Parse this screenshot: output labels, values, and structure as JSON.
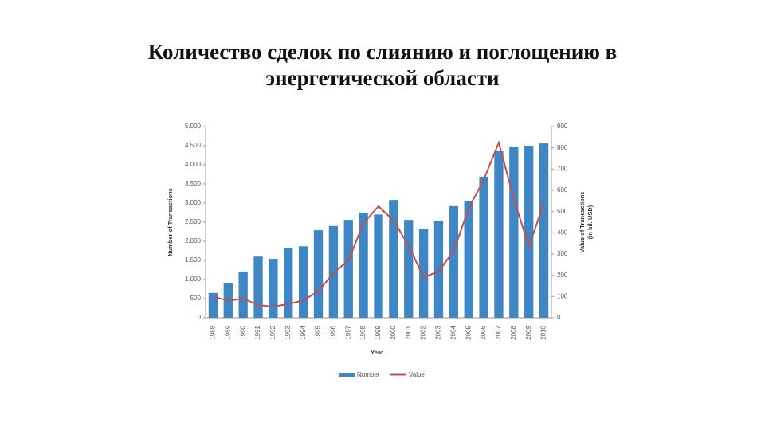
{
  "title_lines": [
    "Количество сделок по слиянию и поглощению в",
    "энергетической области"
  ],
  "chart_data": {
    "type": "bar_line",
    "categories": [
      "1988",
      "1989",
      "1990",
      "1991",
      "1992",
      "1993",
      "1994",
      "1995",
      "1996",
      "1997",
      "1998",
      "1999",
      "2000",
      "2001",
      "2002",
      "2003",
      "2004",
      "2005",
      "2006",
      "2007",
      "2008",
      "2009",
      "2010"
    ],
    "series": [
      {
        "name": "Number",
        "type": "bar",
        "color": "#3f86c4",
        "values": [
          650,
          900,
          1210,
          1600,
          1540,
          1830,
          1870,
          2290,
          2400,
          2560,
          2750,
          2700,
          3080,
          2560,
          2330,
          2540,
          2920,
          3060,
          3690,
          4375,
          4480,
          4500,
          4560
        ]
      },
      {
        "name": "Value",
        "type": "line",
        "axis": "y2",
        "color": "#c0504d",
        "values": [
          100,
          80,
          90,
          60,
          52,
          65,
          82,
          125,
          210,
          270,
          445,
          525,
          458,
          340,
          190,
          218,
          315,
          515,
          650,
          825,
          560,
          335,
          540
        ]
      }
    ],
    "ylim": [
      0,
      5000
    ],
    "yticks": [
      {
        "value": 0,
        "label": "0"
      },
      {
        "value": 500,
        "label": "500"
      },
      {
        "value": 1000,
        "label": "1.000"
      },
      {
        "value": 1500,
        "label": "1.500"
      },
      {
        "value": 2000,
        "label": "2.000"
      },
      {
        "value": 2500,
        "label": "2.500"
      },
      {
        "value": 3000,
        "label": "3.000"
      },
      {
        "value": 3500,
        "label": "3.500"
      },
      {
        "value": 4000,
        "label": "4.000"
      },
      {
        "value": 4500,
        "label": "4.500"
      },
      {
        "value": 5000,
        "label": "5.000"
      }
    ],
    "y2lim": [
      0,
      900
    ],
    "y2ticks": [
      0,
      100,
      200,
      300,
      400,
      500,
      600,
      700,
      800,
      900
    ],
    "x_label": "Year",
    "y_label": "Number of Transactions",
    "y2_label": [
      "Value of Transactions",
      "(in bil. USD)"
    ],
    "legend": "bottom"
  }
}
